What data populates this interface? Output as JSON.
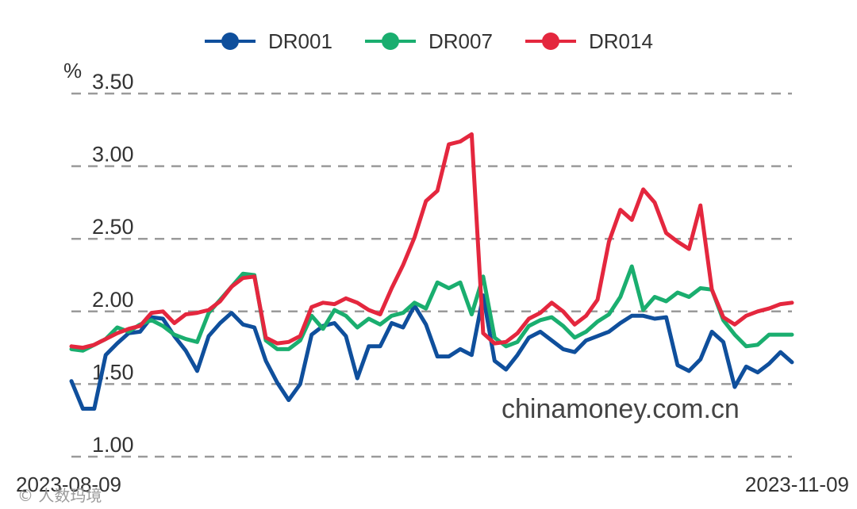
{
  "chart_data": {
    "type": "line",
    "ylabel": "%",
    "ylim": [
      1.0,
      3.5
    ],
    "yticks": [
      "1.00",
      "1.50",
      "2.00",
      "2.50",
      "3.00",
      "3.50"
    ],
    "grid": true,
    "legend_position": "top",
    "x_start_label": "2023-08-09",
    "x_end_label": "2023-11-09",
    "series": [
      {
        "name": "DR001",
        "color": "#0f4f9c",
        "values": [
          1.52,
          1.33,
          1.33,
          1.7,
          1.78,
          1.85,
          1.86,
          1.96,
          1.95,
          1.83,
          1.73,
          1.59,
          1.83,
          1.92,
          1.99,
          1.91,
          1.89,
          1.66,
          1.51,
          1.39,
          1.5,
          1.84,
          1.9,
          1.92,
          1.83,
          1.54,
          1.76,
          1.76,
          1.92,
          1.89,
          2.04,
          1.91,
          1.69,
          1.69,
          1.74,
          1.7,
          2.11,
          1.66,
          1.6,
          1.7,
          1.82,
          1.86,
          1.8,
          1.74,
          1.72,
          1.8,
          1.83,
          1.86,
          1.92,
          1.97,
          1.97,
          1.95,
          1.96,
          1.63,
          1.59,
          1.67,
          1.86,
          1.79,
          1.48,
          1.62,
          1.58,
          1.64,
          1.72,
          1.65
        ]
      },
      {
        "name": "DR007",
        "color": "#1aae6f",
        "values": [
          1.74,
          1.73,
          1.77,
          1.81,
          1.89,
          1.86,
          1.91,
          1.94,
          1.9,
          1.84,
          1.81,
          1.79,
          1.99,
          2.08,
          2.17,
          2.26,
          2.25,
          1.8,
          1.74,
          1.74,
          1.8,
          1.97,
          1.88,
          2.01,
          1.97,
          1.89,
          1.95,
          1.91,
          1.97,
          1.99,
          2.06,
          2.02,
          2.2,
          2.16,
          2.2,
          1.98,
          2.24,
          1.82,
          1.76,
          1.79,
          1.9,
          1.94,
          1.96,
          1.9,
          1.82,
          1.86,
          1.93,
          1.98,
          2.1,
          2.31,
          2.01,
          2.1,
          2.07,
          2.13,
          2.1,
          2.16,
          2.15,
          1.94,
          1.84,
          1.76,
          1.77,
          1.84,
          1.84,
          1.84
        ]
      },
      {
        "name": "DR014",
        "color": "#e4273e",
        "values": [
          1.76,
          1.75,
          1.77,
          1.81,
          1.85,
          1.88,
          1.9,
          1.99,
          2.0,
          1.92,
          1.98,
          1.99,
          2.01,
          2.07,
          2.17,
          2.23,
          2.24,
          1.82,
          1.78,
          1.79,
          1.83,
          2.03,
          2.06,
          2.05,
          2.09,
          2.06,
          2.01,
          1.98,
          2.16,
          2.32,
          2.51,
          2.76,
          2.83,
          3.15,
          3.17,
          3.22,
          1.85,
          1.78,
          1.79,
          1.85,
          1.95,
          1.99,
          2.06,
          2.0,
          1.91,
          1.97,
          2.08,
          2.48,
          2.7,
          2.63,
          2.84,
          2.75,
          2.54,
          2.48,
          2.43,
          2.73,
          2.15,
          1.96,
          1.91,
          1.97,
          2.0,
          2.02,
          2.05,
          2.06
        ]
      }
    ],
    "watermark": "chinamoney.com.cn"
  },
  "corner_mark": "© 人数玛境"
}
